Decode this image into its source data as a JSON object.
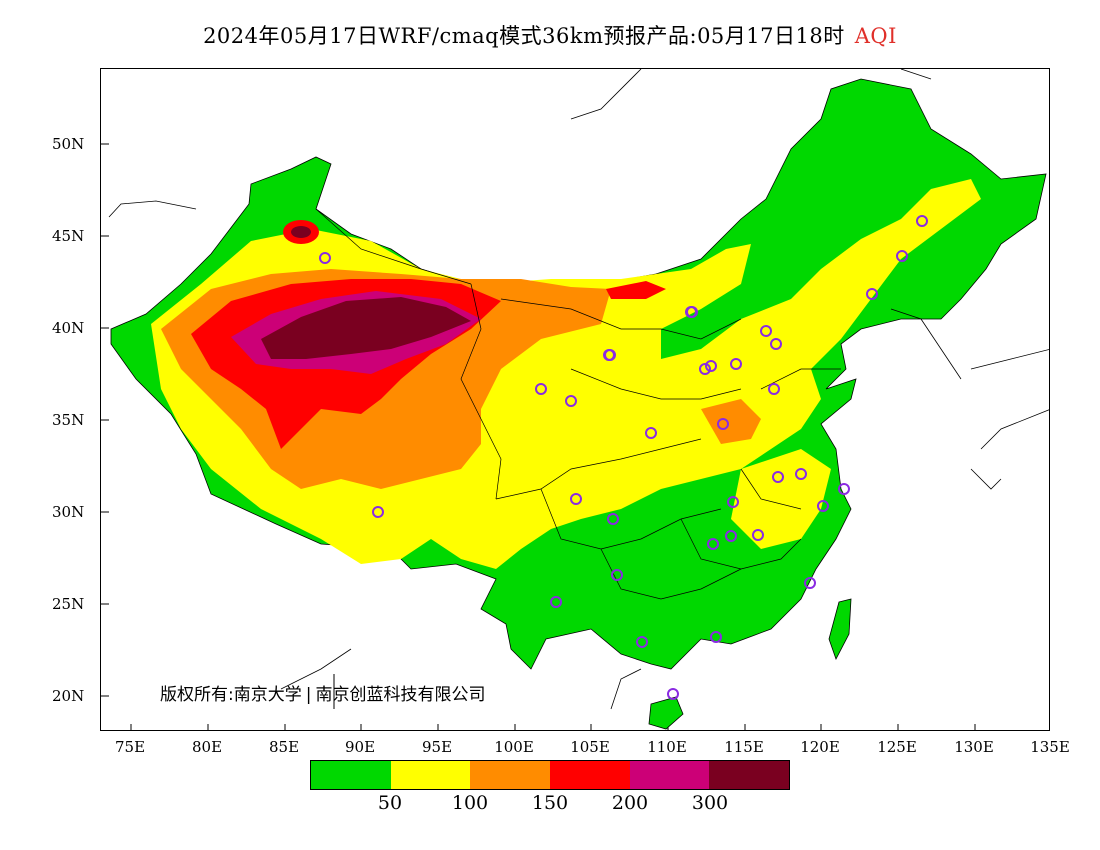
{
  "title": {
    "main": "2024年05月17日WRF/cmaq模式36km预报产品:05月17日18时",
    "param": "AQI"
  },
  "axes": {
    "y_labels": [
      "50N",
      "45N",
      "40N",
      "35N",
      "30N",
      "25N",
      "20N"
    ],
    "x_labels": [
      "75E",
      "80E",
      "85E",
      "90E",
      "95E",
      "100E",
      "105E",
      "110E",
      "115E",
      "120E",
      "125E",
      "130E",
      "135E"
    ],
    "lon_range": [
      73,
      135
    ],
    "lat_range": [
      18,
      54
    ]
  },
  "copyright": {
    "left": "版权所有:南京大学",
    "right": "南京创蓝科技有限公司"
  },
  "colorbar": {
    "colors": [
      "#00d800",
      "#ffff00",
      "#ff8c00",
      "#ff0000",
      "#cc0077",
      "#7a0020"
    ],
    "labels": [
      "50",
      "100",
      "150",
      "200",
      "300"
    ]
  },
  "levels": {
    "background": "#00d800",
    "good": "#00d800",
    "moderate": "#ffff00",
    "unhealthy_sensitive": "#ff8c00",
    "unhealthy": "#ff0000",
    "very_unhealthy": "#cc0077",
    "hazardous": "#7a0020",
    "station_marker": "#8a2be2"
  }
}
